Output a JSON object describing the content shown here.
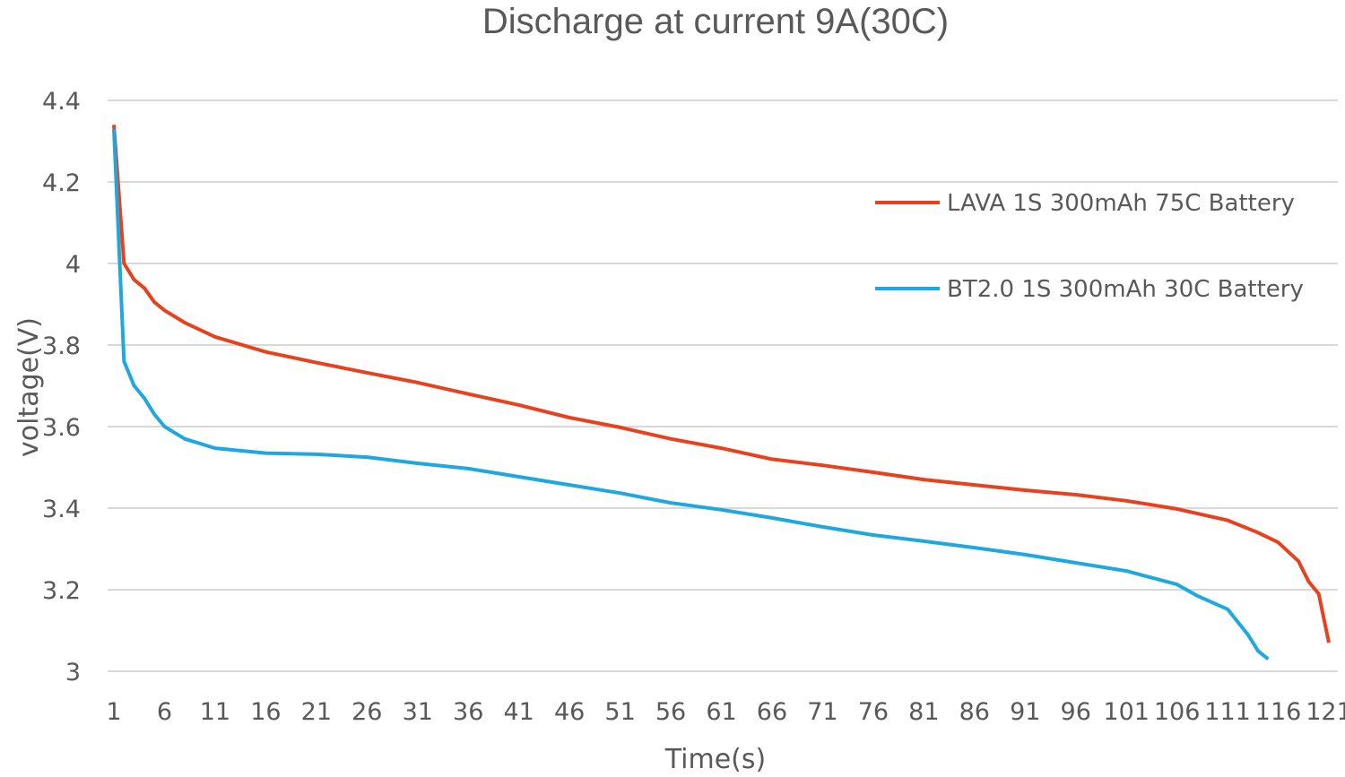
{
  "chart_data": {
    "type": "line",
    "title": "Discharge at current 9A(30C)",
    "xlabel": "Time(s)",
    "ylabel": "voltage(V)",
    "ylim": [
      3,
      4.4
    ],
    "xlim": [
      1,
      121
    ],
    "grid": true,
    "legend_position": "top-right",
    "y_ticks": [
      "3",
      "3.2",
      "3.4",
      "3.6",
      "3.8",
      "4",
      "4.2",
      "4.4"
    ],
    "x_ticks": [
      "1",
      "6",
      "11",
      "16",
      "21",
      "26",
      "31",
      "36",
      "41",
      "46",
      "51",
      "56",
      "61",
      "66",
      "71",
      "76",
      "81",
      "86",
      "91",
      "96",
      "101",
      "106",
      "111",
      "116",
      "121"
    ],
    "series": [
      {
        "name": "LAVA 1S 300mAh 75C Battery",
        "color": "#E8411E",
        "x": [
          1,
          2,
          3,
          4,
          5,
          6,
          8,
          11,
          16,
          21,
          26,
          31,
          36,
          41,
          46,
          51,
          56,
          61,
          66,
          71,
          76,
          81,
          86,
          91,
          96,
          101,
          106,
          111,
          114,
          116,
          118,
          119,
          120,
          121
        ],
        "y": [
          4.34,
          4.0,
          3.96,
          3.94,
          3.905,
          3.885,
          3.855,
          3.82,
          3.783,
          3.757,
          3.732,
          3.708,
          3.68,
          3.653,
          3.622,
          3.598,
          3.57,
          3.547,
          3.52,
          3.505,
          3.488,
          3.47,
          3.457,
          3.444,
          3.433,
          3.418,
          3.398,
          3.37,
          3.34,
          3.316,
          3.27,
          3.22,
          3.19,
          3.07
        ]
      },
      {
        "name": "BT2.0 1S 300mAh 30C Battery",
        "color": "#1FA8E0",
        "x": [
          1,
          2,
          3,
          4,
          5,
          6,
          8,
          11,
          16,
          21,
          26,
          31,
          36,
          41,
          46,
          51,
          56,
          61,
          66,
          71,
          76,
          81,
          86,
          91,
          96,
          101,
          106,
          108,
          111,
          113,
          114,
          115
        ],
        "y": [
          4.33,
          3.76,
          3.7,
          3.67,
          3.63,
          3.6,
          3.57,
          3.547,
          3.535,
          3.532,
          3.525,
          3.51,
          3.497,
          3.477,
          3.457,
          3.437,
          3.413,
          3.396,
          3.376,
          3.354,
          3.334,
          3.319,
          3.303,
          3.286,
          3.266,
          3.246,
          3.213,
          3.185,
          3.152,
          3.09,
          3.05,
          3.03
        ]
      }
    ]
  }
}
